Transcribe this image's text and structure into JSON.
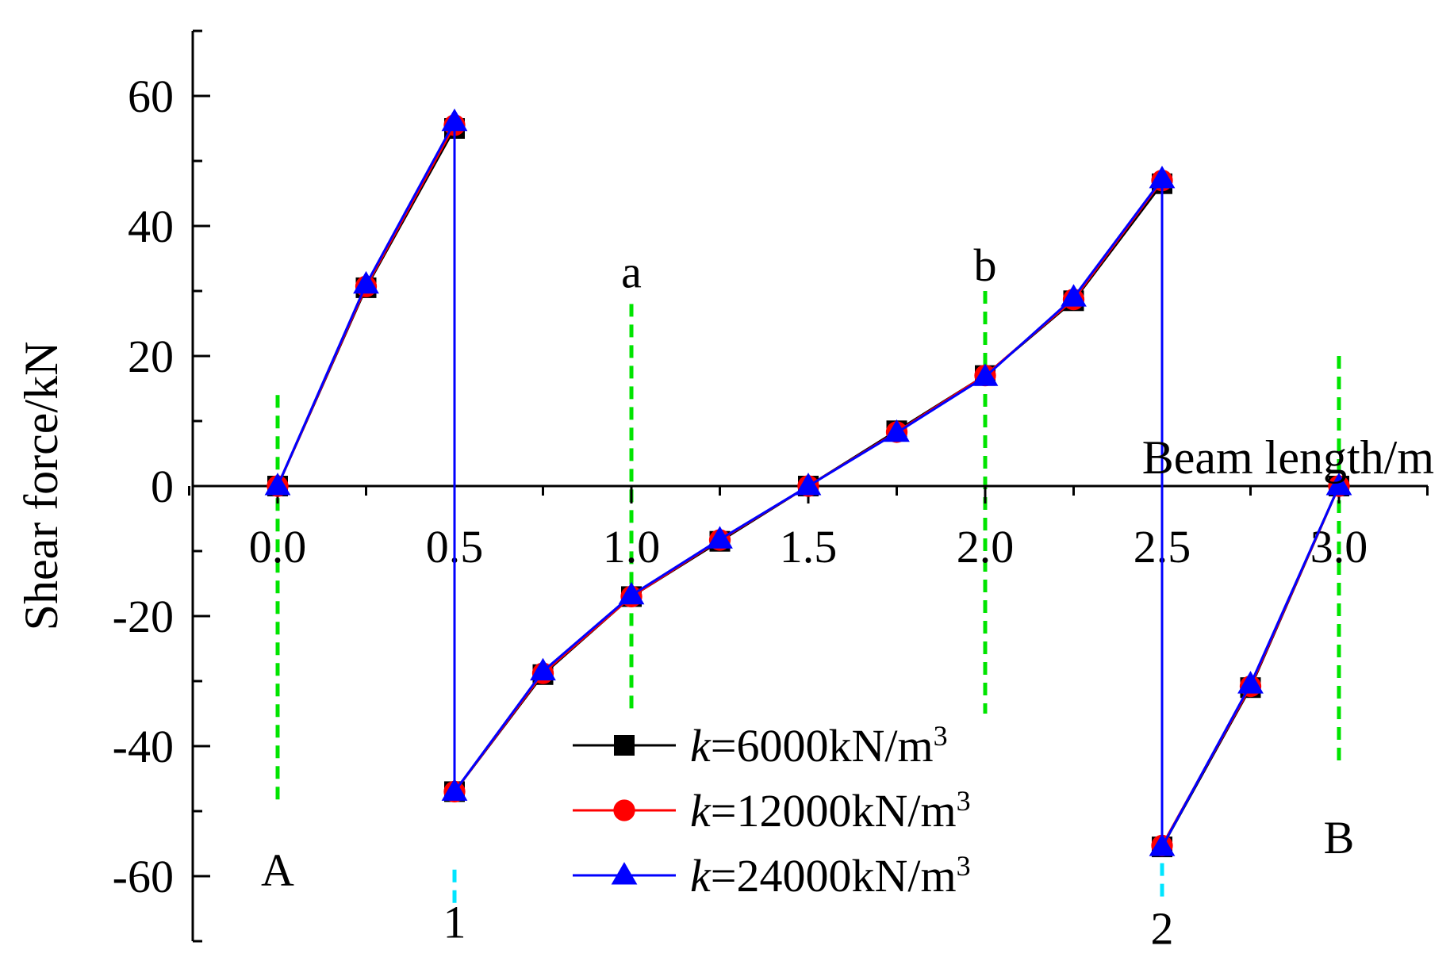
{
  "chart_data": {
    "type": "line",
    "title": "",
    "xlabel": "Beam length/m",
    "ylabel": "Shear force/kN",
    "xlim": [
      -0.5,
      3.25
    ],
    "ylim": [
      -70,
      70
    ],
    "x_ticks": [
      "0.0",
      "0.5",
      "1.0",
      "1.5",
      "2.0",
      "2.5",
      "3.0"
    ],
    "y_ticks": [
      "-60",
      "-40",
      "-20",
      "0",
      "20",
      "40",
      "60"
    ],
    "grid": false,
    "legend_position": "bottom-center",
    "series": [
      {
        "name_prefix": "k",
        "name_rest": "=6000kN/m",
        "name_sup": "3",
        "color": "#000000",
        "marker": "square",
        "x": [
          0,
          0.25,
          0.5,
          0.5,
          0.75,
          1.0,
          1.25,
          1.5,
          1.75,
          2.0,
          2.25,
          2.5,
          2.5,
          2.75,
          3.0
        ],
        "y": [
          0,
          30.5,
          55,
          -47,
          -29,
          -17,
          -8.5,
          0,
          8.5,
          17,
          28.5,
          46.5,
          -55.5,
          -31,
          0
        ]
      },
      {
        "name_prefix": "k",
        "name_rest": "=12000kN/m",
        "name_sup": "3",
        "color": "#ff0000",
        "marker": "circle",
        "x": [
          0,
          0.25,
          0.5,
          0.5,
          0.75,
          1.0,
          1.25,
          1.5,
          1.75,
          2.0,
          2.25,
          2.5,
          2.5,
          2.75,
          3.0
        ],
        "y": [
          0,
          30.7,
          55.5,
          -47,
          -28.8,
          -17,
          -8.3,
          0,
          8.3,
          17,
          28.7,
          47,
          -55.3,
          -30.8,
          0
        ]
      },
      {
        "name_prefix": "k",
        "name_rest": "=24000kN/m",
        "name_sup": "3",
        "color": "#0000ff",
        "marker": "triangle",
        "x": [
          0,
          0.25,
          0.5,
          0.5,
          0.75,
          1.0,
          1.25,
          1.5,
          1.75,
          2.0,
          2.25,
          2.5,
          2.5,
          2.75,
          3.0
        ],
        "y": [
          0,
          31,
          56,
          -47,
          -28.5,
          -16.8,
          -8.2,
          0,
          8.2,
          16.8,
          29,
          47.2,
          -55.5,
          -30.5,
          0
        ]
      }
    ],
    "reference_lines": [
      {
        "x": 0.0,
        "y_from": -49,
        "y_to": 14,
        "label": "A",
        "color": "#00e400",
        "label_y": -59
      },
      {
        "x": 0.5,
        "y_from": -65,
        "y_to": -59,
        "label": "1",
        "color": "#00e5ff",
        "label_y": -67
      },
      {
        "x": 1.0,
        "y_from": -35,
        "y_to": 28,
        "label": "a",
        "color": "#00e400",
        "label_y": 33
      },
      {
        "x": 2.0,
        "y_from": -35,
        "y_to": 30,
        "label": "b",
        "color": "#00e400",
        "label_y": 34
      },
      {
        "x": 2.5,
        "y_from": -64,
        "y_to": -58,
        "label": "2",
        "color": "#00e5ff",
        "label_y": -68
      },
      {
        "x": 3.0,
        "y_from": -43,
        "y_to": 20,
        "label": "B",
        "color": "#00e400",
        "label_y": -54
      }
    ]
  }
}
